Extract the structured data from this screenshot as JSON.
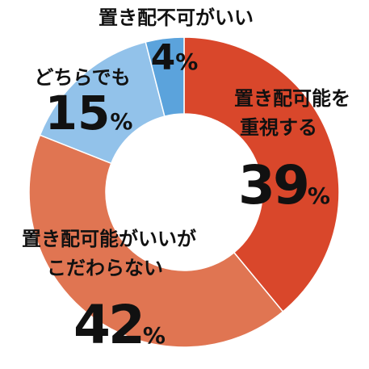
{
  "chart_data": {
    "type": "donut",
    "categories": [
      [
        "置き配可能を",
        "重視する"
      ],
      [
        "置き配可能がいいが",
        "こだわらない"
      ],
      [
        "どちらでも"
      ],
      [
        "置き配不可がいい"
      ]
    ],
    "values": [
      39,
      42,
      15,
      4
    ],
    "unit": "%",
    "colors": [
      "#d9472b",
      "#e07552",
      "#92c2ea",
      "#5ba3dc"
    ]
  }
}
